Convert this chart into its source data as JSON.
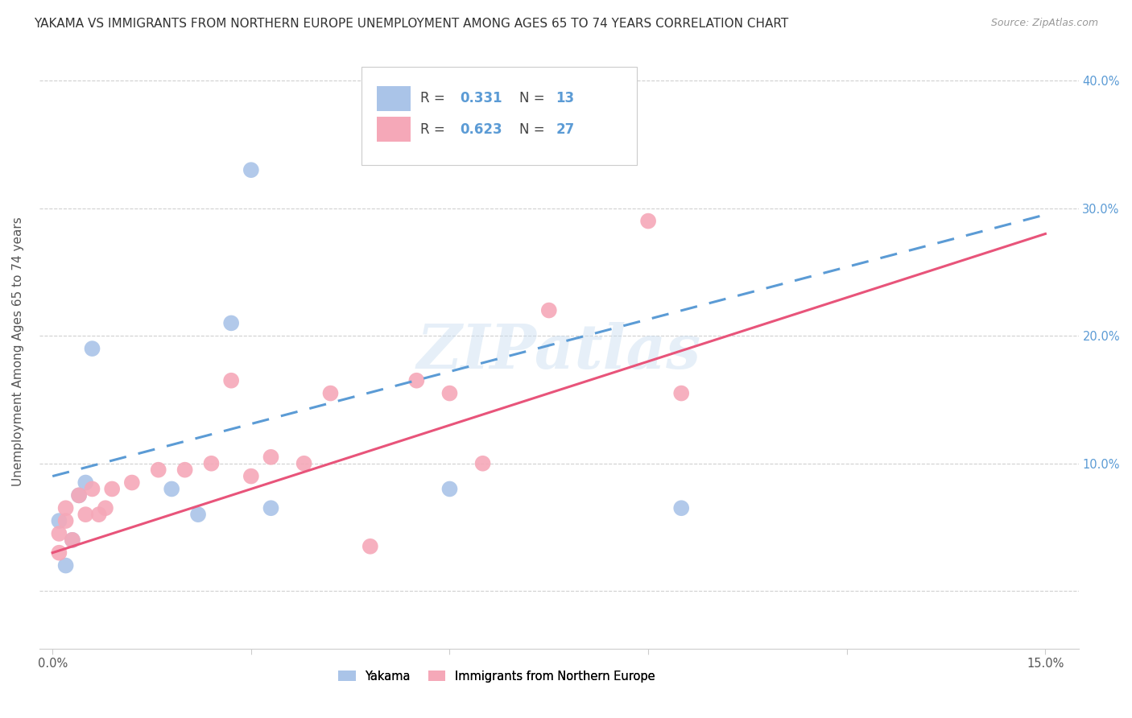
{
  "title": "YAKAMA VS IMMIGRANTS FROM NORTHERN EUROPE UNEMPLOYMENT AMONG AGES 65 TO 74 YEARS CORRELATION CHART",
  "source": "Source: ZipAtlas.com",
  "ylabel": "Unemployment Among Ages 65 to 74 years",
  "xlim": [
    -0.002,
    0.155
  ],
  "ylim": [
    -0.045,
    0.42
  ],
  "background_color": "#ffffff",
  "grid_color": "#d0d0d0",
  "yakama_color": "#aac4e8",
  "immigrants_color": "#f5a8b8",
  "yakama_line_color": "#5b9bd5",
  "immigrants_line_color": "#e8547a",
  "yakama_R": 0.331,
  "yakama_N": 13,
  "immigrants_R": 0.623,
  "immigrants_N": 27,
  "yakama_x": [
    0.001,
    0.002,
    0.003,
    0.004,
    0.005,
    0.006,
    0.018,
    0.022,
    0.027,
    0.03,
    0.033,
    0.06,
    0.095
  ],
  "yakama_y": [
    0.055,
    0.02,
    0.04,
    0.075,
    0.085,
    0.19,
    0.08,
    0.06,
    0.21,
    0.33,
    0.065,
    0.08,
    0.065
  ],
  "immigrants_x": [
    0.001,
    0.001,
    0.002,
    0.002,
    0.003,
    0.004,
    0.005,
    0.006,
    0.007,
    0.008,
    0.009,
    0.012,
    0.016,
    0.02,
    0.024,
    0.027,
    0.03,
    0.033,
    0.038,
    0.042,
    0.048,
    0.055,
    0.06,
    0.065,
    0.075,
    0.09,
    0.095
  ],
  "immigrants_y": [
    0.03,
    0.045,
    0.055,
    0.065,
    0.04,
    0.075,
    0.06,
    0.08,
    0.06,
    0.065,
    0.08,
    0.085,
    0.095,
    0.095,
    0.1,
    0.165,
    0.09,
    0.105,
    0.1,
    0.155,
    0.035,
    0.165,
    0.155,
    0.1,
    0.22,
    0.29,
    0.155
  ],
  "xtick_positions": [
    0.0,
    0.03,
    0.06,
    0.09,
    0.12,
    0.15
  ],
  "xtick_labels": [
    "0.0%",
    "",
    "",
    "",
    "",
    "15.0%"
  ],
  "ytick_positions": [
    0.0,
    0.1,
    0.2,
    0.3,
    0.4
  ],
  "ytick_labels_right": [
    "",
    "10.0%",
    "20.0%",
    "30.0%",
    "40.0%"
  ],
  "legend_labels": [
    "Yakama",
    "Immigrants from Northern Europe"
  ],
  "watermark": "ZIPatlas",
  "title_fontsize": 11,
  "axis_label_fontsize": 11,
  "tick_fontsize": 10.5,
  "legend_fontsize": 12
}
